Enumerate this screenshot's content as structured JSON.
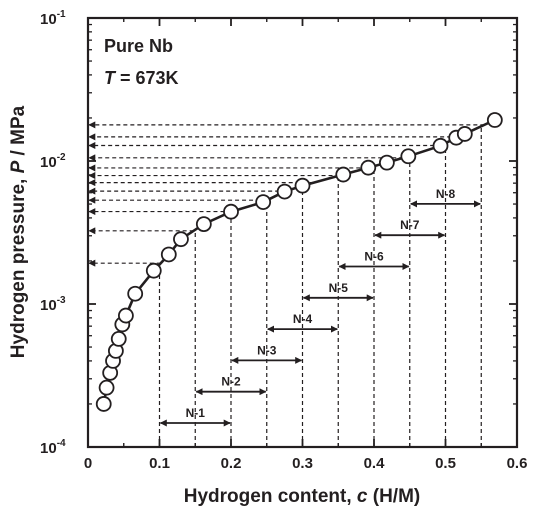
{
  "chart_data": {
    "type": "scatter",
    "xlabel": "Hydrogen content, c (H/M)",
    "xlabel_parts": {
      "prefix": "Hydrogen content, ",
      "var": "c",
      "suffix": " (H/M)"
    },
    "ylabel": "Hydrogen pressure, P / MPa",
    "ylabel_parts": {
      "prefix": "Hydrogen pressure, ",
      "var": "P",
      "suffix": " / MPa"
    },
    "xlim": [
      0,
      0.6
    ],
    "ylim": [
      0.0001,
      0.1
    ],
    "yscale": "log",
    "grid": false,
    "x_ticks": [
      "0",
      "0.1",
      "0.2",
      "0.3",
      "0.4",
      "0.5",
      "0.6"
    ],
    "y_ticks": [
      {
        "base": "10",
        "exp": "-4"
      },
      {
        "base": "10",
        "exp": "-3"
      },
      {
        "base": "10",
        "exp": "-2"
      },
      {
        "base": "10",
        "exp": "-1"
      }
    ],
    "annotations": {
      "material": "Pure Nb",
      "temperature": {
        "var": "T",
        "text": " = 673K"
      }
    },
    "series": [
      {
        "marker": "open-circle",
        "line": true,
        "color": "#231f20",
        "x": [
          0.022,
          0.026,
          0.031,
          0.035,
          0.039,
          0.043,
          0.048,
          0.053,
          0.066,
          0.092,
          0.113,
          0.13,
          0.162,
          0.2,
          0.245,
          0.275,
          0.3,
          0.357,
          0.392,
          0.418,
          0.448,
          0.493,
          0.515,
          0.527,
          0.569
        ],
        "y": [
          0.0002,
          0.00026,
          0.00033,
          0.0004,
          0.00047,
          0.00057,
          0.00072,
          0.00083,
          0.00118,
          0.00171,
          0.00222,
          0.00284,
          0.00362,
          0.00442,
          0.00516,
          0.00611,
          0.00672,
          0.00804,
          0.00898,
          0.00974,
          0.01079,
          0.01277,
          0.01455,
          0.01546,
          0.01935
        ]
      }
    ],
    "pressure_levels": [
      0.00193,
      0.00325,
      0.00443,
      0.00532,
      0.00616,
      0.00706,
      0.00791,
      0.00894,
      0.01053,
      0.01284,
      0.01475,
      0.01789
    ],
    "vertical_markers": [
      0.1,
      0.15,
      0.2,
      0.25,
      0.3,
      0.35,
      0.4,
      0.45,
      0.5,
      0.55
    ],
    "regions": [
      {
        "label": "N-1",
        "x_start": 0.1,
        "x_end": 0.2
      },
      {
        "label": "N-2",
        "x_start": 0.15,
        "x_end": 0.25
      },
      {
        "label": "N-3",
        "x_start": 0.2,
        "x_end": 0.3
      },
      {
        "label": "N-4",
        "x_start": 0.25,
        "x_end": 0.35
      },
      {
        "label": "N-5",
        "x_start": 0.3,
        "x_end": 0.4
      },
      {
        "label": "N-6",
        "x_start": 0.35,
        "x_end": 0.45
      },
      {
        "label": "N-7",
        "x_start": 0.4,
        "x_end": 0.5
      },
      {
        "label": "N-8",
        "x_start": 0.45,
        "x_end": 0.55
      }
    ]
  }
}
